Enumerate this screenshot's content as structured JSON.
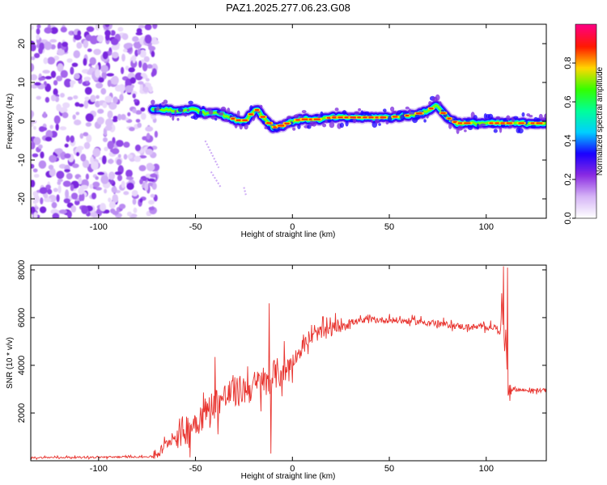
{
  "title": "PAZ1.2025.277.06.23.G08",
  "chart_data": [
    {
      "type": "heatmap",
      "name": "spectrogram",
      "xlabel": "Height of straight line (km)",
      "ylabel": "Frequency (Hz)",
      "xlim": [
        -135,
        131
      ],
      "ylim": [
        -25,
        25
      ],
      "xticks": [
        -100,
        -50,
        0,
        50,
        100
      ],
      "xtick_labels": [
        "-100",
        "-50",
        "0",
        "50",
        "100"
      ],
      "yticks": [
        -20,
        -10,
        0,
        10,
        20
      ],
      "ytick_labels": [
        "-20",
        "-10",
        "0",
        "10",
        "20"
      ],
      "noise_region_x": [
        -135,
        -70
      ],
      "ridge": {
        "x": [
          -72,
          -65,
          -60,
          -55,
          -50,
          -45,
          -40,
          -35,
          -30,
          -25,
          -20,
          -18,
          -15,
          -10,
          -8,
          -5,
          0,
          5,
          10,
          15,
          20,
          30,
          40,
          50,
          60,
          65,
          70,
          73,
          75,
          77,
          80,
          85,
          90,
          95,
          100,
          105,
          110,
          115,
          120,
          125,
          131
        ],
        "freq": [
          3,
          3,
          2.5,
          3,
          3,
          2,
          2.5,
          1.5,
          0.5,
          0,
          2.5,
          3,
          1,
          -1.5,
          -1.5,
          -1,
          0,
          0.5,
          0.5,
          0.5,
          1,
          1,
          1,
          1,
          1.5,
          2,
          2.5,
          4,
          4,
          2.5,
          1,
          -0.5,
          -0.5,
          -0.5,
          -0.5,
          -0.5,
          -0.5,
          -0.5,
          -0.5,
          -0.5,
          -0.5
        ]
      }
    },
    {
      "type": "colorbar",
      "ylabel": "Normalized spectral amplitude",
      "ylim": [
        0,
        1
      ],
      "ticks": [
        0.0,
        0.2,
        0.4,
        0.6,
        0.8
      ],
      "tick_labels": [
        "0.0",
        "0.2",
        "0.4",
        "0.6",
        "0.8"
      ],
      "colors": [
        "#ffffff",
        "#d5b4f6",
        "#8a2be2",
        "#1a00ff",
        "#00cfff",
        "#00ff9a",
        "#33ff00",
        "#ffd800",
        "#ff1a00",
        "#ff007f"
      ]
    },
    {
      "type": "line",
      "name": "snr",
      "xlabel": "Height of straight line (km)",
      "ylabel": "SNR (10 * v/v)",
      "xlim": [
        -135,
        131
      ],
      "ylim": [
        0,
        8200
      ],
      "xticks": [
        -100,
        -50,
        0,
        50,
        100
      ],
      "xtick_labels": [
        "-100",
        "-50",
        "0",
        "50",
        "100"
      ],
      "yticks": [
        2000,
        4000,
        6000,
        8000
      ],
      "ytick_labels": [
        "2000",
        "4000",
        "6000",
        "8000"
      ],
      "color": "#e8332e",
      "x": [
        -135,
        -100,
        -72,
        -68,
        -64,
        -60,
        -56,
        -52,
        -48,
        -44,
        -40,
        -36,
        -32,
        -28,
        -24,
        -20,
        -16,
        -13,
        -10,
        -6,
        -2,
        0,
        4,
        8,
        12,
        16,
        20,
        25,
        30,
        35,
        40,
        50,
        60,
        70,
        80,
        90,
        100,
        104,
        107,
        108,
        109,
        110,
        111,
        112,
        114,
        120,
        131
      ],
      "values": [
        130,
        150,
        170,
        400,
        800,
        1050,
        1250,
        1500,
        1800,
        2100,
        2400,
        2600,
        2800,
        2900,
        3000,
        3100,
        3300,
        3200,
        3600,
        3700,
        3900,
        4200,
        4600,
        5000,
        5300,
        5400,
        5500,
        5700,
        5800,
        5850,
        5900,
        5900,
        5850,
        5800,
        5700,
        5600,
        5600,
        5600,
        5500,
        6500,
        4500,
        5500,
        3200,
        3000,
        3000,
        2950,
        2950
      ],
      "spikes": [
        {
          "x": -40,
          "value": 4350
        },
        {
          "x": -15,
          "value": 3900
        },
        {
          "x": -12,
          "value": 6600
        },
        {
          "x": -11,
          "value": 300
        },
        {
          "x": 109,
          "value": 8150
        },
        {
          "x": 111,
          "value": 8100
        }
      ]
    }
  ]
}
